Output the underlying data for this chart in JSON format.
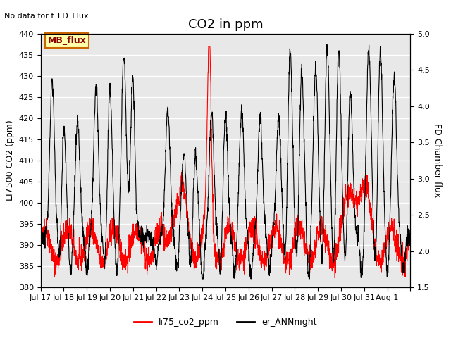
{
  "title": "CO2 in ppm",
  "top_left_text": "No data for f_FD_Flux",
  "ylabel_left": "LI7500 CO2 (ppm)",
  "ylabel_right": "FD Chamber flux",
  "ylim_left": [
    380,
    440
  ],
  "ylim_right": [
    1.5,
    5.0
  ],
  "yticks_left": [
    380,
    385,
    390,
    395,
    400,
    405,
    410,
    415,
    420,
    425,
    430,
    435,
    440
  ],
  "yticks_right": [
    1.5,
    2.0,
    2.5,
    3.0,
    3.5,
    4.0,
    4.5,
    5.0
  ],
  "xtick_positions": [
    0,
    1,
    2,
    3,
    4,
    5,
    6,
    7,
    8,
    9,
    10,
    11,
    12,
    13,
    14,
    15,
    16
  ],
  "xtick_labels": [
    "Jul 17",
    "Jul 18",
    "Jul 19",
    "Jul 20",
    "Jul 21",
    "Jul 22",
    "Jul 23",
    "Jul 24",
    "Jul 25",
    "Jul 26",
    "Jul 27",
    "Jul 28",
    "Jul 29",
    "Jul 30",
    "Jul 31",
    "Aug 1",
    ""
  ],
  "legend_items": [
    {
      "label": "li75_co2_ppm",
      "color": "red",
      "lw": 1.5
    },
    {
      "label": "er_ANNnight",
      "color": "black",
      "lw": 1.5
    }
  ],
  "mb_flux_box": {
    "text": "MB_flux",
    "bg_color": "#ffffaa",
    "border_color": "#cc6600",
    "text_color": "darkred"
  },
  "plot_bg_color": "#e8e8e8",
  "title_fontsize": 13,
  "label_fontsize": 9,
  "tick_fontsize": 8
}
